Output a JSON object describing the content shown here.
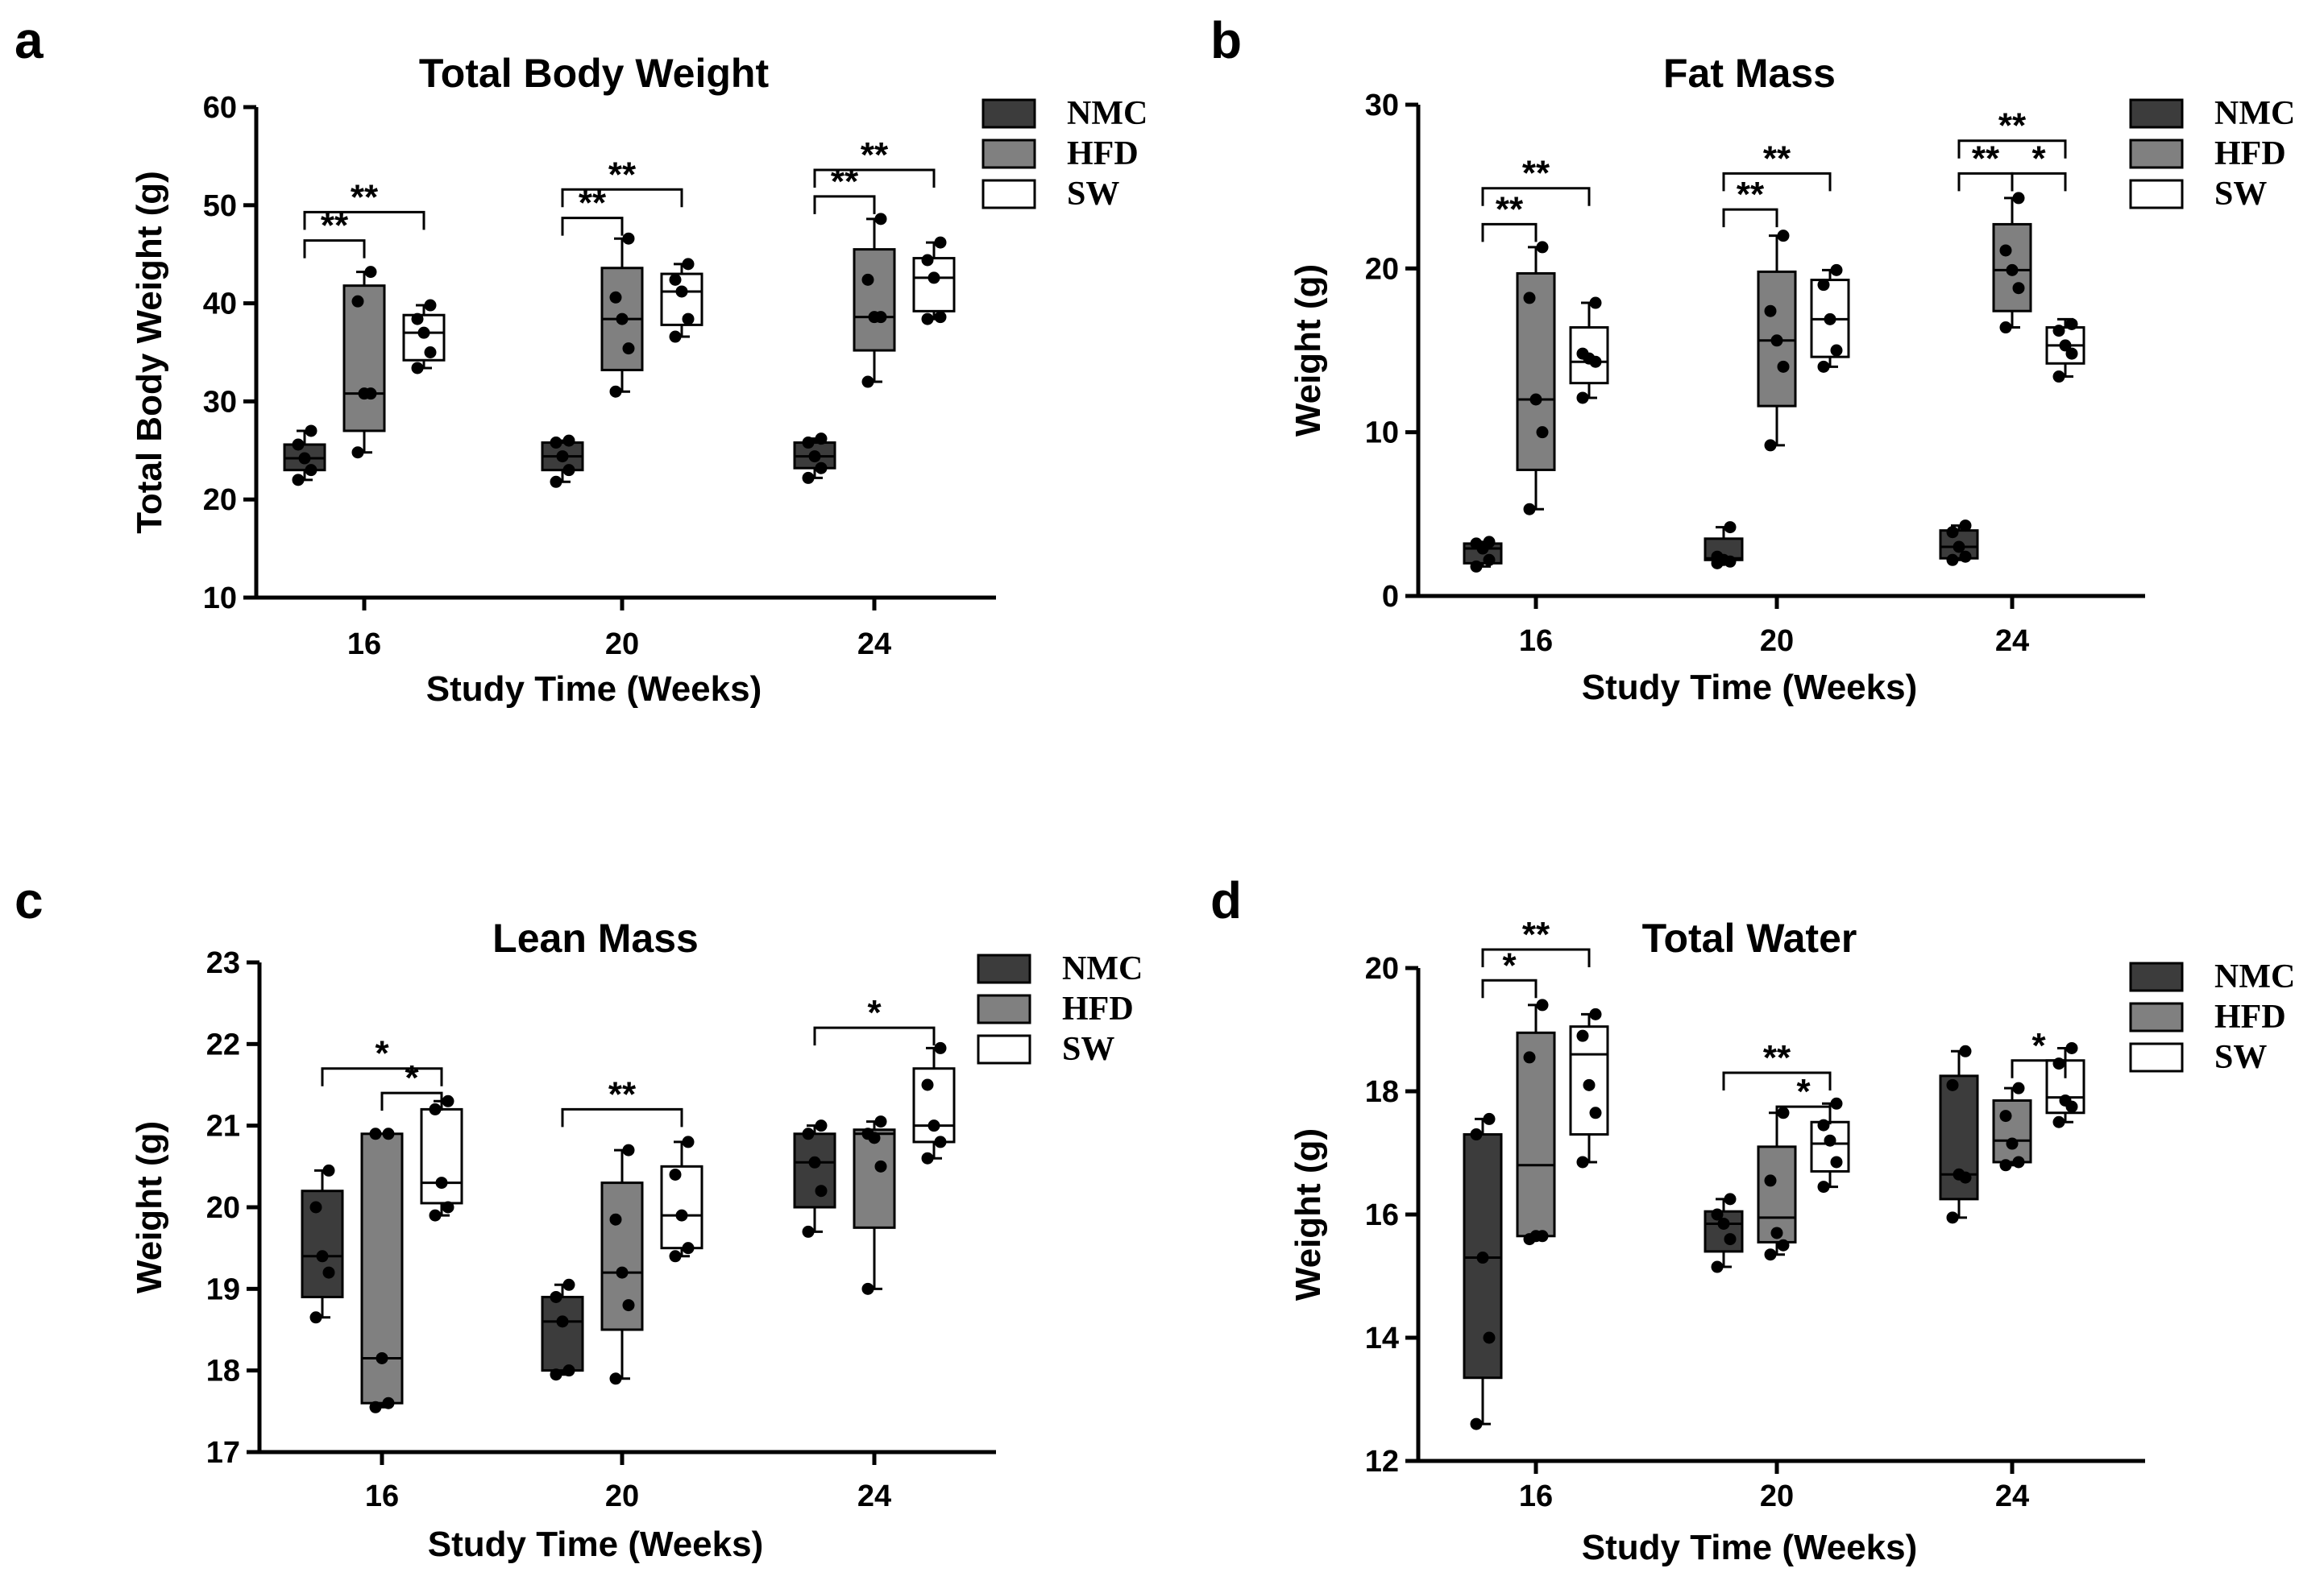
{
  "colors": {
    "NMC": "#3c3c3c",
    "HFD": "#808080",
    "SW": "#ffffff",
    "stroke": "#000000"
  },
  "chart_data": [
    {
      "panel": "a",
      "type": "box",
      "title": "Total Body Weight",
      "xlabel": "Study Time (Weeks)",
      "ylabel": "Total Body Weight (g)",
      "ylim": [
        10,
        60
      ],
      "yticks": [
        10,
        20,
        30,
        40,
        50,
        60
      ],
      "categories": [
        "16",
        "20",
        "24"
      ],
      "legend": [
        "NMC",
        "HFD",
        "SW"
      ],
      "series": [
        {
          "name": "NMC",
          "boxes": [
            {
              "min": 22,
              "q1": 23,
              "median": 24.2,
              "q3": 25.6,
              "max": 27,
              "points": [
                22,
                23,
                24.2,
                25.6,
                27
              ]
            },
            {
              "min": 21.8,
              "q1": 23,
              "median": 24.4,
              "q3": 25.8,
              "max": 26,
              "points": [
                21.8,
                23,
                24.4,
                25.8,
                26
              ]
            },
            {
              "min": 22.2,
              "q1": 23.2,
              "median": 24.4,
              "q3": 25.8,
              "max": 26.2,
              "points": [
                22.2,
                23.2,
                24.4,
                25.8,
                26.2
              ]
            }
          ]
        },
        {
          "name": "HFD",
          "boxes": [
            {
              "min": 24.8,
              "q1": 27,
              "median": 30.8,
              "q3": 41.8,
              "max": 43.2,
              "points": [
                24.8,
                30.8,
                30.8,
                40.2,
                43.2
              ]
            },
            {
              "min": 31,
              "q1": 33.2,
              "median": 38.4,
              "q3": 43.6,
              "max": 46.6,
              "points": [
                31,
                35.4,
                38.4,
                40.6,
                46.6
              ]
            },
            {
              "min": 32,
              "q1": 35.2,
              "median": 38.6,
              "q3": 45.5,
              "max": 48.6,
              "points": [
                32,
                38.6,
                38.6,
                42.4,
                48.6
              ]
            }
          ]
        },
        {
          "name": "SW",
          "boxes": [
            {
              "min": 33.4,
              "q1": 34.2,
              "median": 37,
              "q3": 38.8,
              "max": 39.8,
              "points": [
                33.4,
                35,
                37,
                38.4,
                39.8
              ]
            },
            {
              "min": 36.6,
              "q1": 37.8,
              "median": 41.2,
              "q3": 43,
              "max": 44,
              "points": [
                36.6,
                38.4,
                41.2,
                42.4,
                44
              ]
            },
            {
              "min": 38.4,
              "q1": 39.2,
              "median": 42.6,
              "q3": 44.6,
              "max": 46.2,
              "points": [
                38.4,
                38.6,
                42.6,
                44.4,
                46.2
              ]
            }
          ]
        }
      ],
      "significance": [
        {
          "group": 0,
          "from": "NMC",
          "to": "HFD",
          "label": "**",
          "level": 46.4
        },
        {
          "group": 0,
          "from": "NMC",
          "to": "SW",
          "label": "**",
          "level": 49.3
        },
        {
          "group": 1,
          "from": "NMC",
          "to": "HFD",
          "label": "**",
          "level": 48.7
        },
        {
          "group": 1,
          "from": "NMC",
          "to": "SW",
          "label": "**",
          "level": 51.6
        },
        {
          "group": 2,
          "from": "NMC",
          "to": "HFD",
          "label": "**",
          "level": 50.9
        },
        {
          "group": 2,
          "from": "NMC",
          "to": "SW",
          "label": "**",
          "level": 53.6
        }
      ]
    },
    {
      "panel": "b",
      "type": "box",
      "title": "Fat Mass",
      "xlabel": "Study Time (Weeks)",
      "ylabel": "Weight (g)",
      "ylim": [
        0,
        30
      ],
      "yticks": [
        0,
        10,
        20,
        30
      ],
      "categories": [
        "16",
        "20",
        "24"
      ],
      "legend": [
        "NMC",
        "HFD",
        "SW"
      ],
      "series": [
        {
          "name": "NMC",
          "boxes": [
            {
              "min": 1.8,
              "q1": 2,
              "median": 2.9,
              "q3": 3.2,
              "max": 3.3,
              "points": [
                1.8,
                2.2,
                2.9,
                3.2,
                3.3
              ]
            },
            {
              "min": 2,
              "q1": 2.2,
              "median": 2.3,
              "q3": 3.5,
              "max": 4.2,
              "points": [
                2,
                2.1,
                2.2,
                2.4,
                4.2
              ]
            },
            {
              "min": 2.2,
              "q1": 2.3,
              "median": 3,
              "q3": 4,
              "max": 4.3,
              "points": [
                2.2,
                2.4,
                3,
                3.9,
                4.3
              ]
            }
          ]
        },
        {
          "name": "HFD",
          "boxes": [
            {
              "min": 5.3,
              "q1": 7.7,
              "median": 12,
              "q3": 19.7,
              "max": 21.3,
              "points": [
                5.3,
                10,
                12,
                18.2,
                21.3
              ]
            },
            {
              "min": 9.2,
              "q1": 11.6,
              "median": 15.6,
              "q3": 19.8,
              "max": 22,
              "points": [
                9.2,
                14,
                15.6,
                17.4,
                22
              ]
            },
            {
              "min": 16.4,
              "q1": 17.4,
              "median": 19.9,
              "q3": 22.7,
              "max": 24.3,
              "points": [
                16.4,
                18.8,
                19.9,
                21.1,
                24.3
              ]
            }
          ]
        },
        {
          "name": "SW",
          "boxes": [
            {
              "min": 12.1,
              "q1": 13,
              "median": 14.3,
              "q3": 16.4,
              "max": 17.9,
              "points": [
                12.1,
                14.3,
                14.5,
                14.8,
                17.9
              ]
            },
            {
              "min": 14,
              "q1": 14.6,
              "median": 16.9,
              "q3": 19.3,
              "max": 19.9,
              "points": [
                14,
                15,
                16.9,
                19,
                19.9
              ]
            },
            {
              "min": 13.4,
              "q1": 14.2,
              "median": 15.3,
              "q3": 16.4,
              "max": 16.9,
              "points": [
                13.4,
                14.8,
                15.3,
                16.2,
                16.6
              ]
            }
          ]
        }
      ],
      "significance": [
        {
          "group": 0,
          "from": "NMC",
          "to": "HFD",
          "label": "**",
          "level": 22.7
        },
        {
          "group": 0,
          "from": "NMC",
          "to": "SW",
          "label": "**",
          "level": 24.9
        },
        {
          "group": 1,
          "from": "NMC",
          "to": "HFD",
          "label": "**",
          "level": 23.6
        },
        {
          "group": 1,
          "from": "NMC",
          "to": "SW",
          "label": "**",
          "level": 25.8
        },
        {
          "group": 2,
          "from": "NMC",
          "to": "HFD",
          "label": "**",
          "level": 25.8
        },
        {
          "group": 2,
          "from": "HFD",
          "to": "SW",
          "label": "*",
          "level": 25.8
        },
        {
          "group": 2,
          "from": "NMC",
          "to": "SW",
          "label": "**",
          "level": 27.8
        }
      ]
    },
    {
      "panel": "c",
      "type": "box",
      "title": "Lean Mass",
      "xlabel": "Study Time (Weeks)",
      "ylabel": "Weight (g)",
      "ylim": [
        17,
        23
      ],
      "yticks": [
        17,
        18,
        19,
        20,
        21,
        22,
        23
      ],
      "categories": [
        "16",
        "20",
        "24"
      ],
      "legend": [
        "NMC",
        "HFD",
        "SW"
      ],
      "series": [
        {
          "name": "NMC",
          "boxes": [
            {
              "min": 18.65,
              "q1": 18.9,
              "median": 19.4,
              "q3": 20.2,
              "max": 20.45,
              "points": [
                18.65,
                19.2,
                19.4,
                20,
                20.45
              ]
            },
            {
              "min": 17.95,
              "q1": 18,
              "median": 18.6,
              "q3": 18.9,
              "max": 19.05,
              "points": [
                17.95,
                18,
                18.6,
                18.9,
                19.05
              ]
            },
            {
              "min": 19.7,
              "q1": 20,
              "median": 20.55,
              "q3": 20.9,
              "max": 21,
              "points": [
                19.7,
                20.2,
                20.55,
                20.9,
                21
              ]
            }
          ]
        },
        {
          "name": "HFD",
          "boxes": [
            {
              "min": 17.55,
              "q1": 17.6,
              "median": 18.15,
              "q3": 20.9,
              "max": 20.9,
              "points": [
                17.55,
                17.6,
                18.15,
                20.9,
                20.9
              ]
            },
            {
              "min": 17.9,
              "q1": 18.5,
              "median": 19.2,
              "q3": 20.3,
              "max": 20.7,
              "points": [
                17.9,
                18.8,
                19.2,
                19.85,
                20.7
              ]
            },
            {
              "min": 19,
              "q1": 19.75,
              "median": 20.9,
              "q3": 20.95,
              "max": 21.05,
              "points": [
                19,
                20.5,
                20.85,
                20.9,
                21.05
              ]
            }
          ]
        },
        {
          "name": "SW",
          "boxes": [
            {
              "min": 19.9,
              "q1": 20.05,
              "median": 20.3,
              "q3": 21.2,
              "max": 21.3,
              "points": [
                19.9,
                20,
                20.3,
                21.2,
                21.3
              ]
            },
            {
              "min": 19.4,
              "q1": 19.5,
              "median": 19.9,
              "q3": 20.5,
              "max": 20.8,
              "points": [
                19.4,
                19.5,
                19.9,
                20.4,
                20.8
              ]
            },
            {
              "min": 20.6,
              "q1": 20.8,
              "median": 21,
              "q3": 21.7,
              "max": 21.95,
              "points": [
                20.6,
                20.8,
                21,
                21.5,
                21.95
              ]
            }
          ]
        }
      ],
      "significance": [
        {
          "group": 0,
          "from": "HFD",
          "to": "SW",
          "label": "*",
          "level": 21.4
        },
        {
          "group": 0,
          "from": "NMC",
          "to": "SW",
          "label": "*",
          "level": 21.7
        },
        {
          "group": 1,
          "from": "NMC",
          "to": "SW",
          "label": "**",
          "level": 21.2
        },
        {
          "group": 2,
          "from": "NMC",
          "to": "SW",
          "label": "*",
          "level": 22.2
        }
      ]
    },
    {
      "panel": "d",
      "type": "box",
      "title": "Total Water",
      "xlabel": "Study Time (Weeks)",
      "ylabel": "Weight (g)",
      "ylim": [
        12,
        20
      ],
      "yticks": [
        12,
        14,
        16,
        18,
        20
      ],
      "categories": [
        "16",
        "20",
        "24"
      ],
      "legend": [
        "NMC",
        "HFD",
        "SW"
      ],
      "series": [
        {
          "name": "NMC",
          "boxes": [
            {
              "min": 12.6,
              "q1": 13.35,
              "median": 15.3,
              "q3": 17.3,
              "max": 17.55,
              "points": [
                12.6,
                14,
                15.3,
                17.3,
                17.55
              ]
            },
            {
              "min": 15.15,
              "q1": 15.4,
              "median": 15.85,
              "q3": 16.05,
              "max": 16.25,
              "points": [
                15.15,
                15.6,
                15.85,
                16,
                16.25
              ]
            },
            {
              "min": 15.95,
              "q1": 16.25,
              "median": 16.65,
              "q3": 18.25,
              "max": 18.65,
              "points": [
                15.95,
                16.6,
                16.65,
                18.1,
                18.65
              ]
            }
          ]
        },
        {
          "name": "HFD",
          "boxes": [
            {
              "min": 15.6,
              "q1": 15.65,
              "median": 16.8,
              "q3": 18.95,
              "max": 19.4,
              "points": [
                15.6,
                15.65,
                15.65,
                18.55,
                19.4
              ]
            },
            {
              "min": 15.35,
              "q1": 15.55,
              "median": 15.95,
              "q3": 17.1,
              "max": 17.65,
              "points": [
                15.35,
                15.5,
                15.7,
                16.55,
                17.65
              ]
            },
            {
              "min": 16.8,
              "q1": 16.85,
              "median": 17.2,
              "q3": 17.85,
              "max": 18.05,
              "points": [
                16.8,
                16.85,
                17.15,
                17.6,
                18.05
              ]
            }
          ]
        },
        {
          "name": "SW",
          "boxes": [
            {
              "min": 16.85,
              "q1": 17.3,
              "median": 18.6,
              "q3": 19.05,
              "max": 19.25,
              "points": [
                16.85,
                17.65,
                18.1,
                18.9,
                19.25
              ]
            },
            {
              "min": 16.45,
              "q1": 16.7,
              "median": 17.15,
              "q3": 17.5,
              "max": 17.8,
              "points": [
                16.45,
                16.85,
                17.2,
                17.45,
                17.8
              ]
            },
            {
              "min": 17.5,
              "q1": 17.65,
              "median": 17.9,
              "q3": 18.5,
              "max": 18.7,
              "points": [
                17.5,
                17.75,
                17.85,
                18.45,
                18.7
              ]
            }
          ]
        }
      ],
      "significance": [
        {
          "group": 0,
          "from": "NMC",
          "to": "HFD",
          "label": "*",
          "level": 19.8
        },
        {
          "group": 0,
          "from": "NMC",
          "to": "SW",
          "label": "**",
          "level": 20.3
        },
        {
          "group": 1,
          "from": "HFD",
          "to": "SW",
          "label": "*",
          "level": 17.75
        },
        {
          "group": 1,
          "from": "NMC",
          "to": "SW",
          "label": "**",
          "level": 18.3
        },
        {
          "group": 2,
          "from": "HFD",
          "to": "SW",
          "label": "*",
          "level": 18.5
        }
      ]
    }
  ]
}
